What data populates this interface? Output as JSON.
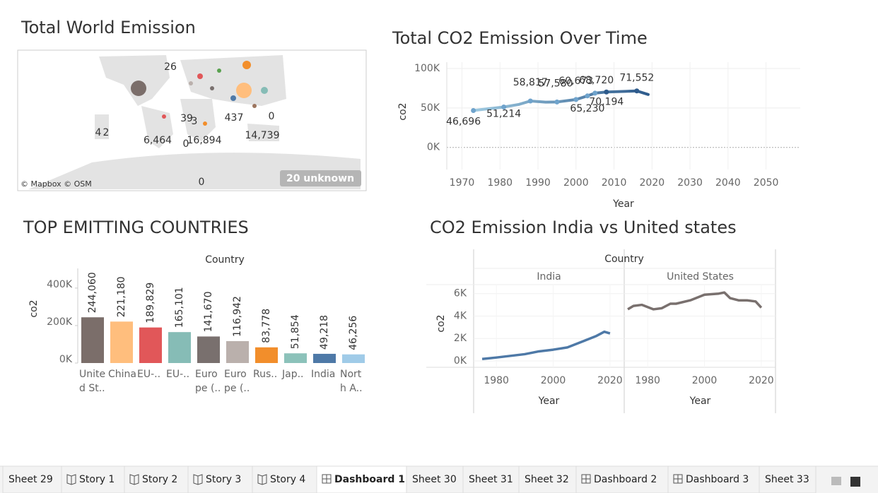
{
  "chart_data": [
    {
      "type": "map",
      "title": "Total World Emission",
      "values": [
        26,
        4,
        2,
        39,
        3,
        437,
        0,
        6464,
        0,
        16894,
        14739,
        0
      ],
      "value_labels": [
        "26",
        "4",
        "2",
        "39",
        "3",
        "437",
        "0",
        "6,464",
        "0",
        "16,894",
        "14,739",
        "0"
      ],
      "attribution": "© Mapbox © OSM",
      "unknown_label": "20 unknown"
    },
    {
      "type": "line",
      "title": "Total CO2 Emission Over Time",
      "xlabel": "Year",
      "ylabel": "co2",
      "x": [
        1973,
        1976,
        1981,
        1985,
        1988,
        1992,
        1995,
        2000,
        2003,
        2005,
        2008,
        2013,
        2016,
        2019
      ],
      "values": [
        46696,
        48500,
        51214,
        54500,
        58817,
        57300,
        57580,
        60673,
        65230,
        68720,
        70194,
        71000,
        71552,
        67000
      ],
      "value_labels": [
        "46,696",
        null,
        "51,214",
        null,
        "58,817",
        null,
        "57,580",
        "60,673",
        "65,230",
        "68,720",
        "70,194",
        null,
        "71,552",
        null
      ],
      "colors": [
        "#9ecae1",
        "#2e5b8c"
      ],
      "xlim": [
        1966,
        2059
      ],
      "xticks": [
        1970,
        1980,
        1990,
        2000,
        2010,
        2020,
        2030,
        2040,
        2050
      ],
      "ylim": [
        -28000,
        108000
      ],
      "yticks": [
        {
          "value": 0,
          "label": "0K"
        },
        {
          "value": 50000,
          "label": "50K"
        },
        {
          "value": 100000,
          "label": "100K"
        }
      ],
      "grid": true
    },
    {
      "type": "bar",
      "title": "TOP EMITTING COUNTRIES",
      "header": "Country",
      "ylabel": "co2",
      "categories": [
        "Unite\nd St..",
        "China",
        "EU-..",
        "EU-..",
        "Euro\npe (..",
        "Euro\npe (..",
        "Rus..",
        "Jap..",
        "India",
        "Nort\nh A.."
      ],
      "values": [
        244060,
        221180,
        189829,
        165101,
        141670,
        116942,
        83778,
        51854,
        49218,
        46256
      ],
      "value_labels": [
        "244,060",
        "221,180",
        "189,829",
        "165,101",
        "141,670",
        "116,942",
        "83,778",
        "51,854",
        "49,218",
        "46,256"
      ],
      "colors": [
        "#7b6e6a",
        "#ffbe7d",
        "#e15759",
        "#86bcb6",
        "#79706e",
        "#bab0ac",
        "#f28e2b",
        "#8cc2ba",
        "#4e79a7",
        "#a0cbe8"
      ],
      "ylim": [
        0,
        505000
      ],
      "yticks": [
        {
          "value": 0,
          "label": "0K"
        },
        {
          "value": 200000,
          "label": "200K"
        },
        {
          "value": 400000,
          "label": "400K"
        }
      ]
    },
    {
      "type": "facet-line",
      "title": "CO2 Emission India vs United states",
      "header": "Country",
      "xlabel": "Year",
      "ylabel": "co2",
      "xlim": [
        1972,
        2025
      ],
      "xticks": [
        1980,
        2000,
        2020
      ],
      "ylim": [
        -570,
        6800
      ],
      "yticks": [
        {
          "value": 0,
          "label": "0K"
        },
        {
          "value": 2000,
          "label": "2K"
        },
        {
          "value": 4000,
          "label": "4K"
        },
        {
          "value": 6000,
          "label": "6K"
        }
      ],
      "series": [
        {
          "name": "India",
          "color": "#4e79a7",
          "x": [
            1975,
            1980,
            1985,
            1990,
            1995,
            2000,
            2005,
            2010,
            2015,
            2018,
            2020
          ],
          "values": [
            170,
            300,
            450,
            600,
            850,
            1000,
            1200,
            1700,
            2200,
            2600,
            2450
          ]
        },
        {
          "name": "United States",
          "color": "#79706e",
          "x": [
            1973,
            1975,
            1978,
            1982,
            1985,
            1988,
            1990,
            1995,
            2000,
            2005,
            2007,
            2009,
            2012,
            2015,
            2018,
            2020
          ],
          "values": [
            4600,
            4900,
            5000,
            4600,
            4700,
            5100,
            5100,
            5400,
            5900,
            6000,
            6100,
            5600,
            5400,
            5400,
            5300,
            4750
          ]
        }
      ]
    }
  ],
  "tabs": [
    {
      "label": "Sheet 29",
      "icon": "sheet"
    },
    {
      "label": "Story 1",
      "icon": "story"
    },
    {
      "label": "Story 2",
      "icon": "story"
    },
    {
      "label": "Story 3",
      "icon": "story"
    },
    {
      "label": "Story 4",
      "icon": "story"
    },
    {
      "label": "Dashboard 1",
      "icon": "dashboard",
      "active": true
    },
    {
      "label": "Sheet 30",
      "icon": "sheet"
    },
    {
      "label": "Sheet 31",
      "icon": "sheet"
    },
    {
      "label": "Sheet 32",
      "icon": "sheet"
    },
    {
      "label": "Dashboard 2",
      "icon": "dashboard"
    },
    {
      "label": "Dashboard 3",
      "icon": "dashboard"
    },
    {
      "label": "Sheet 33",
      "icon": "sheet"
    }
  ]
}
